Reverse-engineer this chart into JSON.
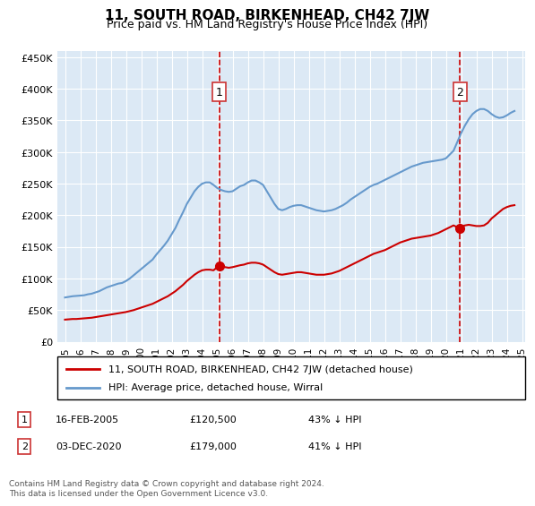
{
  "title": "11, SOUTH ROAD, BIRKENHEAD, CH42 7JW",
  "subtitle": "Price paid vs. HM Land Registry's House Price Index (HPI)",
  "bg_color": "#dce9f5",
  "plot_bg_color": "#dce9f5",
  "hpi_years": [
    1995.0,
    1995.25,
    1995.5,
    1995.75,
    1996.0,
    1996.25,
    1996.5,
    1996.75,
    1997.0,
    1997.25,
    1997.5,
    1997.75,
    1998.0,
    1998.25,
    1998.5,
    1998.75,
    1999.0,
    1999.25,
    1999.5,
    1999.75,
    2000.0,
    2000.25,
    2000.5,
    2000.75,
    2001.0,
    2001.25,
    2001.5,
    2001.75,
    2002.0,
    2002.25,
    2002.5,
    2002.75,
    2003.0,
    2003.25,
    2003.5,
    2003.75,
    2004.0,
    2004.25,
    2004.5,
    2004.75,
    2005.0,
    2005.25,
    2005.5,
    2005.75,
    2006.0,
    2006.25,
    2006.5,
    2006.75,
    2007.0,
    2007.25,
    2007.5,
    2007.75,
    2008.0,
    2008.25,
    2008.5,
    2008.75,
    2009.0,
    2009.25,
    2009.5,
    2009.75,
    2010.0,
    2010.25,
    2010.5,
    2010.75,
    2011.0,
    2011.25,
    2011.5,
    2011.75,
    2012.0,
    2012.25,
    2012.5,
    2012.75,
    2013.0,
    2013.25,
    2013.5,
    2013.75,
    2014.0,
    2014.25,
    2014.5,
    2014.75,
    2015.0,
    2015.25,
    2015.5,
    2015.75,
    2016.0,
    2016.25,
    2016.5,
    2016.75,
    2017.0,
    2017.25,
    2017.5,
    2017.75,
    2018.0,
    2018.25,
    2018.5,
    2018.75,
    2019.0,
    2019.25,
    2019.5,
    2019.75,
    2020.0,
    2020.25,
    2020.5,
    2020.75,
    2021.0,
    2021.25,
    2021.5,
    2021.75,
    2022.0,
    2022.25,
    2022.5,
    2022.75,
    2023.0,
    2023.25,
    2023.5,
    2023.75,
    2024.0,
    2024.25,
    2024.5
  ],
  "hpi_values": [
    70000,
    71000,
    72000,
    72500,
    73000,
    73500,
    75000,
    76000,
    78000,
    80000,
    83000,
    86000,
    88000,
    90000,
    92000,
    93000,
    96000,
    100000,
    105000,
    110000,
    115000,
    120000,
    125000,
    130000,
    138000,
    145000,
    152000,
    160000,
    170000,
    180000,
    193000,
    205000,
    218000,
    228000,
    238000,
    245000,
    250000,
    252000,
    252000,
    248000,
    243000,
    240000,
    238000,
    237000,
    238000,
    242000,
    246000,
    248000,
    252000,
    255000,
    255000,
    252000,
    248000,
    238000,
    228000,
    218000,
    210000,
    208000,
    210000,
    213000,
    215000,
    216000,
    216000,
    214000,
    212000,
    210000,
    208000,
    207000,
    206000,
    207000,
    208000,
    210000,
    213000,
    216000,
    220000,
    225000,
    229000,
    233000,
    237000,
    241000,
    245000,
    248000,
    250000,
    253000,
    256000,
    259000,
    262000,
    265000,
    268000,
    271000,
    274000,
    277000,
    279000,
    281000,
    283000,
    284000,
    285000,
    286000,
    287000,
    288000,
    290000,
    296000,
    302000,
    316000,
    330000,
    342000,
    352000,
    360000,
    365000,
    368000,
    368000,
    365000,
    360000,
    356000,
    354000,
    355000,
    358000,
    362000,
    365000
  ],
  "red_years": [
    1995.0,
    1995.25,
    1995.5,
    1995.75,
    1996.0,
    1996.25,
    1996.5,
    1996.75,
    1997.0,
    1997.25,
    1997.5,
    1997.75,
    1998.0,
    1998.25,
    1998.5,
    1998.75,
    1999.0,
    1999.25,
    1999.5,
    1999.75,
    2000.0,
    2000.25,
    2000.5,
    2000.75,
    2001.0,
    2001.25,
    2001.5,
    2001.75,
    2002.0,
    2002.25,
    2002.5,
    2002.75,
    2003.0,
    2003.25,
    2003.5,
    2003.75,
    2004.0,
    2004.25,
    2004.5,
    2004.75,
    2005.12,
    2005.25,
    2005.5,
    2005.75,
    2006.0,
    2006.25,
    2006.5,
    2006.75,
    2007.0,
    2007.25,
    2007.5,
    2007.75,
    2008.0,
    2008.25,
    2008.5,
    2008.75,
    2009.0,
    2009.25,
    2009.5,
    2009.75,
    2010.0,
    2010.25,
    2010.5,
    2010.75,
    2011.0,
    2011.25,
    2011.5,
    2011.75,
    2012.0,
    2012.25,
    2012.5,
    2012.75,
    2013.0,
    2013.25,
    2013.5,
    2013.75,
    2014.0,
    2014.25,
    2014.5,
    2014.75,
    2015.0,
    2015.25,
    2015.5,
    2015.75,
    2016.0,
    2016.25,
    2016.5,
    2016.75,
    2017.0,
    2017.25,
    2017.5,
    2017.75,
    2018.0,
    2018.25,
    2018.5,
    2018.75,
    2019.0,
    2019.25,
    2019.5,
    2019.75,
    2020.0,
    2020.25,
    2020.5,
    2020.92,
    2021.0,
    2021.25,
    2021.5,
    2021.75,
    2022.0,
    2022.25,
    2022.5,
    2022.75,
    2023.0,
    2023.25,
    2023.5,
    2023.75,
    2024.0,
    2024.25,
    2024.5
  ],
  "red_values": [
    35000,
    35500,
    36000,
    36000,
    36500,
    37000,
    37500,
    38000,
    39000,
    40000,
    41000,
    42000,
    43000,
    44000,
    45000,
    46000,
    47000,
    48500,
    50000,
    52000,
    54000,
    56000,
    58000,
    60000,
    63000,
    66000,
    69000,
    72000,
    76000,
    80000,
    85000,
    90000,
    96000,
    101000,
    106000,
    110000,
    113000,
    114000,
    114000,
    113000,
    120500,
    119000,
    118000,
    117000,
    118000,
    119500,
    121000,
    122000,
    124000,
    125000,
    125000,
    124000,
    122000,
    118000,
    114000,
    110000,
    107000,
    106000,
    107000,
    108000,
    109000,
    110000,
    110000,
    109000,
    108000,
    107000,
    106000,
    106000,
    106000,
    107000,
    108000,
    110000,
    112000,
    115000,
    118000,
    121000,
    124000,
    127000,
    130000,
    133000,
    136000,
    139000,
    141000,
    143000,
    145000,
    148000,
    151000,
    154000,
    157000,
    159000,
    161000,
    163000,
    164000,
    165000,
    166000,
    167000,
    168000,
    170000,
    172000,
    175000,
    178000,
    181000,
    184000,
    179000,
    182000,
    184000,
    185000,
    184000,
    183000,
    183000,
    184000,
    188000,
    195000,
    200000,
    205000,
    210000,
    213000,
    215000,
    216000
  ],
  "sale1_x": 2005.12,
  "sale1_y": 120500,
  "sale1_label": "1",
  "sale2_x": 2020.92,
  "sale2_y": 179000,
  "sale2_label": "2",
  "vline1_x": 2005.12,
  "vline2_x": 2020.92,
  "yticks": [
    0,
    50000,
    100000,
    150000,
    200000,
    250000,
    300000,
    350000,
    400000,
    450000
  ],
  "ytick_labels": [
    "£0",
    "£50K",
    "£100K",
    "£150K",
    "£200K",
    "£250K",
    "£300K",
    "£350K",
    "£400K",
    "£450K"
  ],
  "xticks": [
    1995,
    1996,
    1997,
    1998,
    1999,
    2000,
    2001,
    2002,
    2003,
    2004,
    2005,
    2006,
    2007,
    2008,
    2009,
    2010,
    2011,
    2012,
    2013,
    2014,
    2015,
    2016,
    2017,
    2018,
    2019,
    2020,
    2021,
    2022,
    2023,
    2024,
    2025
  ],
  "legend_red_label": "11, SOUTH ROAD, BIRKENHEAD, CH42 7JW (detached house)",
  "legend_blue_label": "HPI: Average price, detached house, Wirral",
  "ann1_date": "16-FEB-2005",
  "ann1_price": "£120,500",
  "ann1_pct": "43% ↓ HPI",
  "ann2_date": "03-DEC-2020",
  "ann2_price": "£179,000",
  "ann2_pct": "41% ↓ HPI",
  "footer": "Contains HM Land Registry data © Crown copyright and database right 2024.\nThis data is licensed under the Open Government Licence v3.0.",
  "red_color": "#cc0000",
  "blue_color": "#6699cc",
  "vline_color": "#cc0000",
  "marker_color": "#cc0000",
  "box_color": "#cc3333"
}
